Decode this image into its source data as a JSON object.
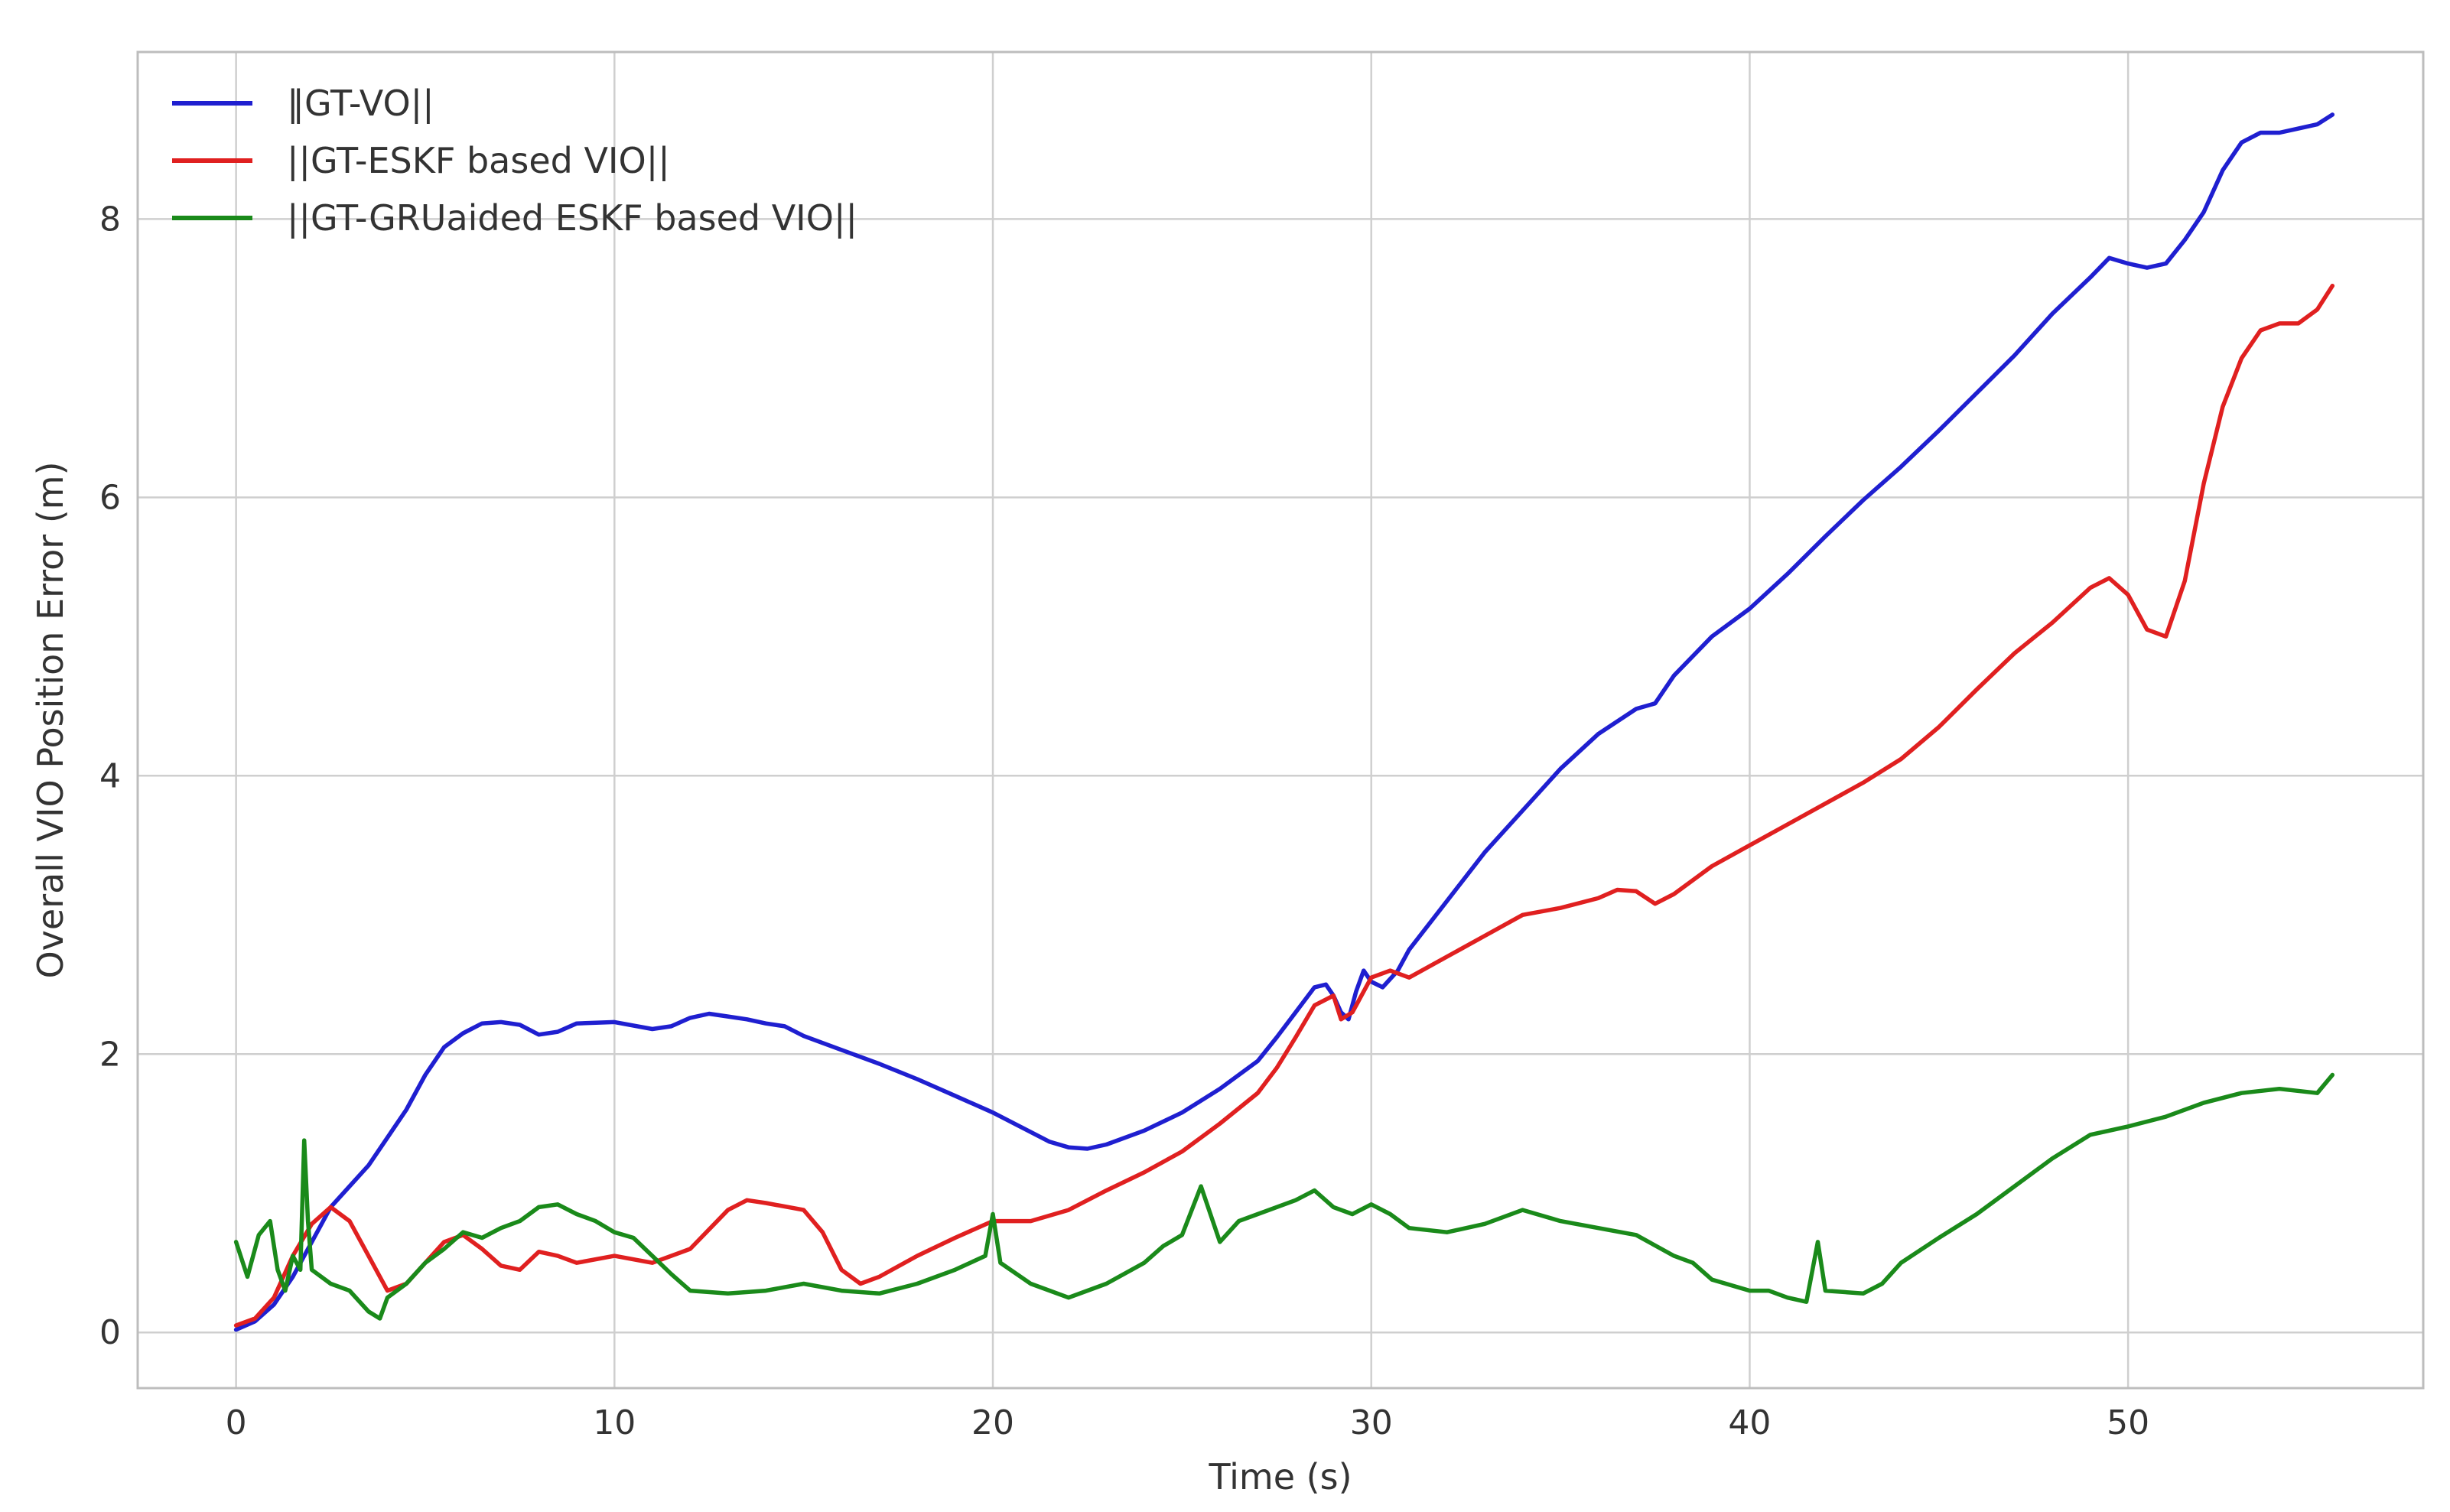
{
  "chart_data": {
    "type": "line",
    "title": "",
    "xlabel": "Time (s)",
    "ylabel": "Overall VIO Position Error (m)",
    "xlim": [
      -2.6,
      57.8
    ],
    "ylim": [
      -0.4,
      9.2
    ],
    "xticks": [
      0,
      10,
      20,
      30,
      40,
      50
    ],
    "yticks": [
      0,
      2,
      4,
      6,
      8
    ],
    "grid": true,
    "legend_position": "top-left",
    "series": [
      {
        "name": "‖GT-VO||",
        "color": "#1f1fd0",
        "points": [
          [
            0,
            0.02
          ],
          [
            0.5,
            0.08
          ],
          [
            1,
            0.2
          ],
          [
            1.5,
            0.4
          ],
          [
            2,
            0.65
          ],
          [
            2.5,
            0.9
          ],
          [
            3,
            1.05
          ],
          [
            3.5,
            1.2
          ],
          [
            4,
            1.4
          ],
          [
            4.5,
            1.6
          ],
          [
            5,
            1.85
          ],
          [
            5.5,
            2.05
          ],
          [
            6,
            2.15
          ],
          [
            6.5,
            2.22
          ],
          [
            7,
            2.23
          ],
          [
            7.5,
            2.21
          ],
          [
            8,
            2.14
          ],
          [
            8.5,
            2.16
          ],
          [
            9,
            2.22
          ],
          [
            10,
            2.23
          ],
          [
            11,
            2.18
          ],
          [
            11.5,
            2.2
          ],
          [
            12,
            2.26
          ],
          [
            12.5,
            2.29
          ],
          [
            13,
            2.27
          ],
          [
            13.5,
            2.25
          ],
          [
            14,
            2.22
          ],
          [
            14.5,
            2.2
          ],
          [
            15,
            2.13
          ],
          [
            16,
            2.03
          ],
          [
            17,
            1.93
          ],
          [
            18,
            1.82
          ],
          [
            19,
            1.7
          ],
          [
            20,
            1.58
          ],
          [
            21,
            1.44
          ],
          [
            21.5,
            1.37
          ],
          [
            22,
            1.33
          ],
          [
            22.5,
            1.32
          ],
          [
            23,
            1.35
          ],
          [
            24,
            1.45
          ],
          [
            25,
            1.58
          ],
          [
            26,
            1.75
          ],
          [
            27,
            1.95
          ],
          [
            27.5,
            2.12
          ],
          [
            28,
            2.3
          ],
          [
            28.5,
            2.48
          ],
          [
            28.8,
            2.5
          ],
          [
            29,
            2.42
          ],
          [
            29.2,
            2.3
          ],
          [
            29.4,
            2.25
          ],
          [
            29.6,
            2.45
          ],
          [
            29.8,
            2.6
          ],
          [
            30,
            2.52
          ],
          [
            30.3,
            2.48
          ],
          [
            30.7,
            2.6
          ],
          [
            31,
            2.75
          ],
          [
            32,
            3.1
          ],
          [
            33,
            3.45
          ],
          [
            34,
            3.75
          ],
          [
            35,
            4.05
          ],
          [
            36,
            4.3
          ],
          [
            37,
            4.48
          ],
          [
            37.5,
            4.52
          ],
          [
            38,
            4.72
          ],
          [
            39,
            5.0
          ],
          [
            40,
            5.2
          ],
          [
            41,
            5.45
          ],
          [
            42,
            5.72
          ],
          [
            43,
            5.98
          ],
          [
            44,
            6.22
          ],
          [
            45,
            6.48
          ],
          [
            46,
            6.75
          ],
          [
            47,
            7.02
          ],
          [
            48,
            7.32
          ],
          [
            49,
            7.58
          ],
          [
            49.5,
            7.72
          ],
          [
            50,
            7.68
          ],
          [
            50.5,
            7.65
          ],
          [
            51,
            7.68
          ],
          [
            51.5,
            7.85
          ],
          [
            52,
            8.05
          ],
          [
            52.5,
            8.35
          ],
          [
            53,
            8.55
          ],
          [
            53.5,
            8.62
          ],
          [
            54,
            8.62
          ],
          [
            54.5,
            8.65
          ],
          [
            55,
            8.68
          ],
          [
            55.4,
            8.75
          ]
        ]
      },
      {
        "name": "||GT-ESKF based VIO||",
        "color": "#e02020",
        "points": [
          [
            0,
            0.05
          ],
          [
            0.5,
            0.1
          ],
          [
            1,
            0.25
          ],
          [
            1.5,
            0.55
          ],
          [
            2,
            0.78
          ],
          [
            2.5,
            0.9
          ],
          [
            3,
            0.8
          ],
          [
            3.5,
            0.55
          ],
          [
            4,
            0.3
          ],
          [
            4.5,
            0.35
          ],
          [
            5,
            0.5
          ],
          [
            5.5,
            0.65
          ],
          [
            6,
            0.7
          ],
          [
            6.5,
            0.6
          ],
          [
            7,
            0.48
          ],
          [
            7.5,
            0.45
          ],
          [
            8,
            0.58
          ],
          [
            8.5,
            0.55
          ],
          [
            9,
            0.5
          ],
          [
            10,
            0.55
          ],
          [
            11,
            0.5
          ],
          [
            12,
            0.6
          ],
          [
            13,
            0.88
          ],
          [
            13.5,
            0.95
          ],
          [
            14,
            0.93
          ],
          [
            15,
            0.88
          ],
          [
            15.5,
            0.72
          ],
          [
            16,
            0.45
          ],
          [
            16.5,
            0.35
          ],
          [
            17,
            0.4
          ],
          [
            18,
            0.55
          ],
          [
            19,
            0.68
          ],
          [
            20,
            0.8
          ],
          [
            21,
            0.8
          ],
          [
            22,
            0.88
          ],
          [
            23,
            1.02
          ],
          [
            24,
            1.15
          ],
          [
            25,
            1.3
          ],
          [
            26,
            1.5
          ],
          [
            27,
            1.72
          ],
          [
            27.5,
            1.9
          ],
          [
            28,
            2.12
          ],
          [
            28.5,
            2.35
          ],
          [
            29,
            2.42
          ],
          [
            29.2,
            2.25
          ],
          [
            29.5,
            2.3
          ],
          [
            30,
            2.55
          ],
          [
            30.5,
            2.6
          ],
          [
            31,
            2.55
          ],
          [
            32,
            2.7
          ],
          [
            33,
            2.85
          ],
          [
            34,
            3.0
          ],
          [
            35,
            3.05
          ],
          [
            36,
            3.12
          ],
          [
            36.5,
            3.18
          ],
          [
            37,
            3.17
          ],
          [
            37.5,
            3.08
          ],
          [
            38,
            3.15
          ],
          [
            39,
            3.35
          ],
          [
            40,
            3.5
          ],
          [
            41,
            3.65
          ],
          [
            42,
            3.8
          ],
          [
            43,
            3.95
          ],
          [
            44,
            4.12
          ],
          [
            45,
            4.35
          ],
          [
            46,
            4.62
          ],
          [
            47,
            4.88
          ],
          [
            48,
            5.1
          ],
          [
            49,
            5.35
          ],
          [
            49.5,
            5.42
          ],
          [
            50,
            5.3
          ],
          [
            50.5,
            5.05
          ],
          [
            51,
            5.0
          ],
          [
            51.5,
            5.4
          ],
          [
            52,
            6.1
          ],
          [
            52.5,
            6.65
          ],
          [
            53,
            7.0
          ],
          [
            53.5,
            7.2
          ],
          [
            54,
            7.25
          ],
          [
            54.5,
            7.25
          ],
          [
            55,
            7.35
          ],
          [
            55.4,
            7.52
          ]
        ]
      },
      {
        "name": "||GT-GRUaided ESKF based VIO||",
        "color": "#1a8a1a",
        "points": [
          [
            0,
            0.65
          ],
          [
            0.3,
            0.4
          ],
          [
            0.6,
            0.7
          ],
          [
            0.9,
            0.8
          ],
          [
            1.1,
            0.45
          ],
          [
            1.3,
            0.3
          ],
          [
            1.5,
            0.55
          ],
          [
            1.7,
            0.45
          ],
          [
            1.8,
            1.38
          ],
          [
            1.9,
            0.8
          ],
          [
            2,
            0.45
          ],
          [
            2.5,
            0.35
          ],
          [
            3,
            0.3
          ],
          [
            3.5,
            0.15
          ],
          [
            3.8,
            0.1
          ],
          [
            4,
            0.25
          ],
          [
            4.5,
            0.35
          ],
          [
            5,
            0.5
          ],
          [
            5.5,
            0.6
          ],
          [
            6,
            0.72
          ],
          [
            6.5,
            0.68
          ],
          [
            7,
            0.75
          ],
          [
            7.5,
            0.8
          ],
          [
            8,
            0.9
          ],
          [
            8.5,
            0.92
          ],
          [
            9,
            0.85
          ],
          [
            9.5,
            0.8
          ],
          [
            10,
            0.72
          ],
          [
            10.5,
            0.68
          ],
          [
            11,
            0.55
          ],
          [
            11.5,
            0.42
          ],
          [
            12,
            0.3
          ],
          [
            13,
            0.28
          ],
          [
            14,
            0.3
          ],
          [
            15,
            0.35
          ],
          [
            16,
            0.3
          ],
          [
            17,
            0.28
          ],
          [
            18,
            0.35
          ],
          [
            19,
            0.45
          ],
          [
            19.8,
            0.55
          ],
          [
            20,
            0.85
          ],
          [
            20.2,
            0.5
          ],
          [
            21,
            0.35
          ],
          [
            22,
            0.25
          ],
          [
            23,
            0.35
          ],
          [
            24,
            0.5
          ],
          [
            24.5,
            0.62
          ],
          [
            25,
            0.7
          ],
          [
            25.5,
            1.05
          ],
          [
            26,
            0.65
          ],
          [
            26.5,
            0.8
          ],
          [
            27,
            0.85
          ],
          [
            28,
            0.95
          ],
          [
            28.5,
            1.02
          ],
          [
            29,
            0.9
          ],
          [
            29.5,
            0.85
          ],
          [
            30,
            0.92
          ],
          [
            30.5,
            0.85
          ],
          [
            31,
            0.75
          ],
          [
            32,
            0.72
          ],
          [
            33,
            0.78
          ],
          [
            34,
            0.88
          ],
          [
            35,
            0.8
          ],
          [
            36,
            0.75
          ],
          [
            37,
            0.7
          ],
          [
            38,
            0.55
          ],
          [
            38.5,
            0.5
          ],
          [
            39,
            0.38
          ],
          [
            40,
            0.3
          ],
          [
            40.5,
            0.3
          ],
          [
            41,
            0.25
          ],
          [
            41.5,
            0.22
          ],
          [
            41.8,
            0.65
          ],
          [
            42,
            0.3
          ],
          [
            43,
            0.28
          ],
          [
            43.5,
            0.35
          ],
          [
            44,
            0.5
          ],
          [
            45,
            0.68
          ],
          [
            46,
            0.85
          ],
          [
            47,
            1.05
          ],
          [
            48,
            1.25
          ],
          [
            49,
            1.42
          ],
          [
            50,
            1.48
          ],
          [
            51,
            1.55
          ],
          [
            52,
            1.65
          ],
          [
            53,
            1.72
          ],
          [
            54,
            1.75
          ],
          [
            55,
            1.72
          ],
          [
            55.4,
            1.85
          ]
        ]
      }
    ]
  }
}
